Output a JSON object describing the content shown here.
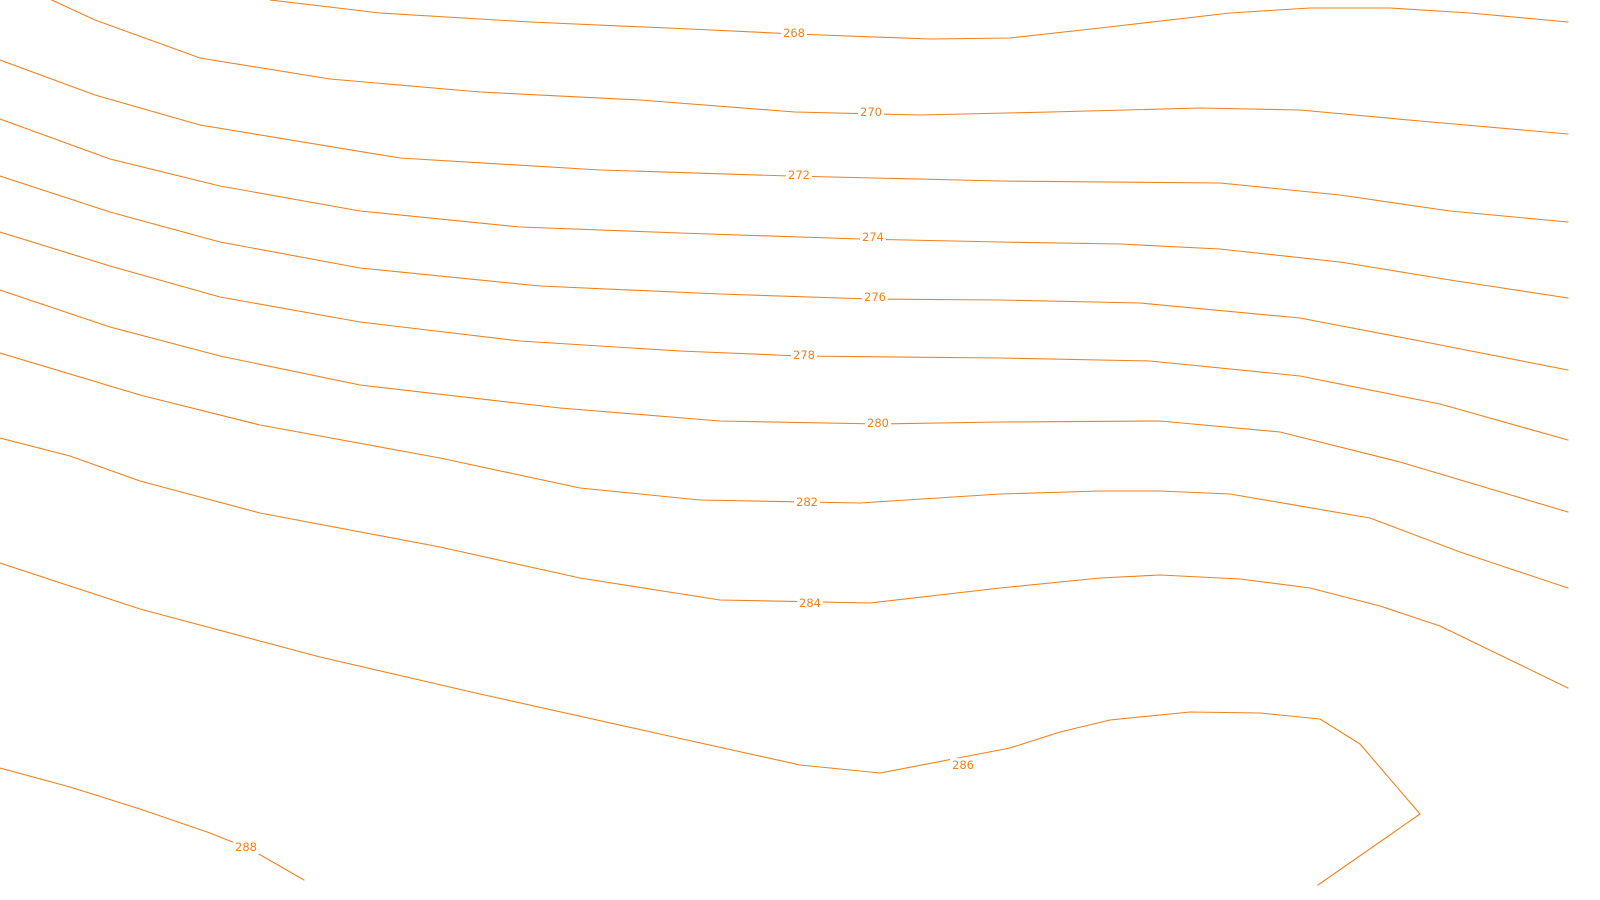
{
  "map": {
    "background_color": "#ffffff",
    "contour_color": "#f0821e",
    "contours": [
      {
        "elevation": "268"
      },
      {
        "elevation": "270"
      },
      {
        "elevation": "272"
      },
      {
        "elevation": "274"
      },
      {
        "elevation": "276"
      },
      {
        "elevation": "278"
      },
      {
        "elevation": "280"
      },
      {
        "elevation": "282"
      },
      {
        "elevation": "284"
      },
      {
        "elevation": "286"
      },
      {
        "elevation": "288"
      }
    ]
  }
}
